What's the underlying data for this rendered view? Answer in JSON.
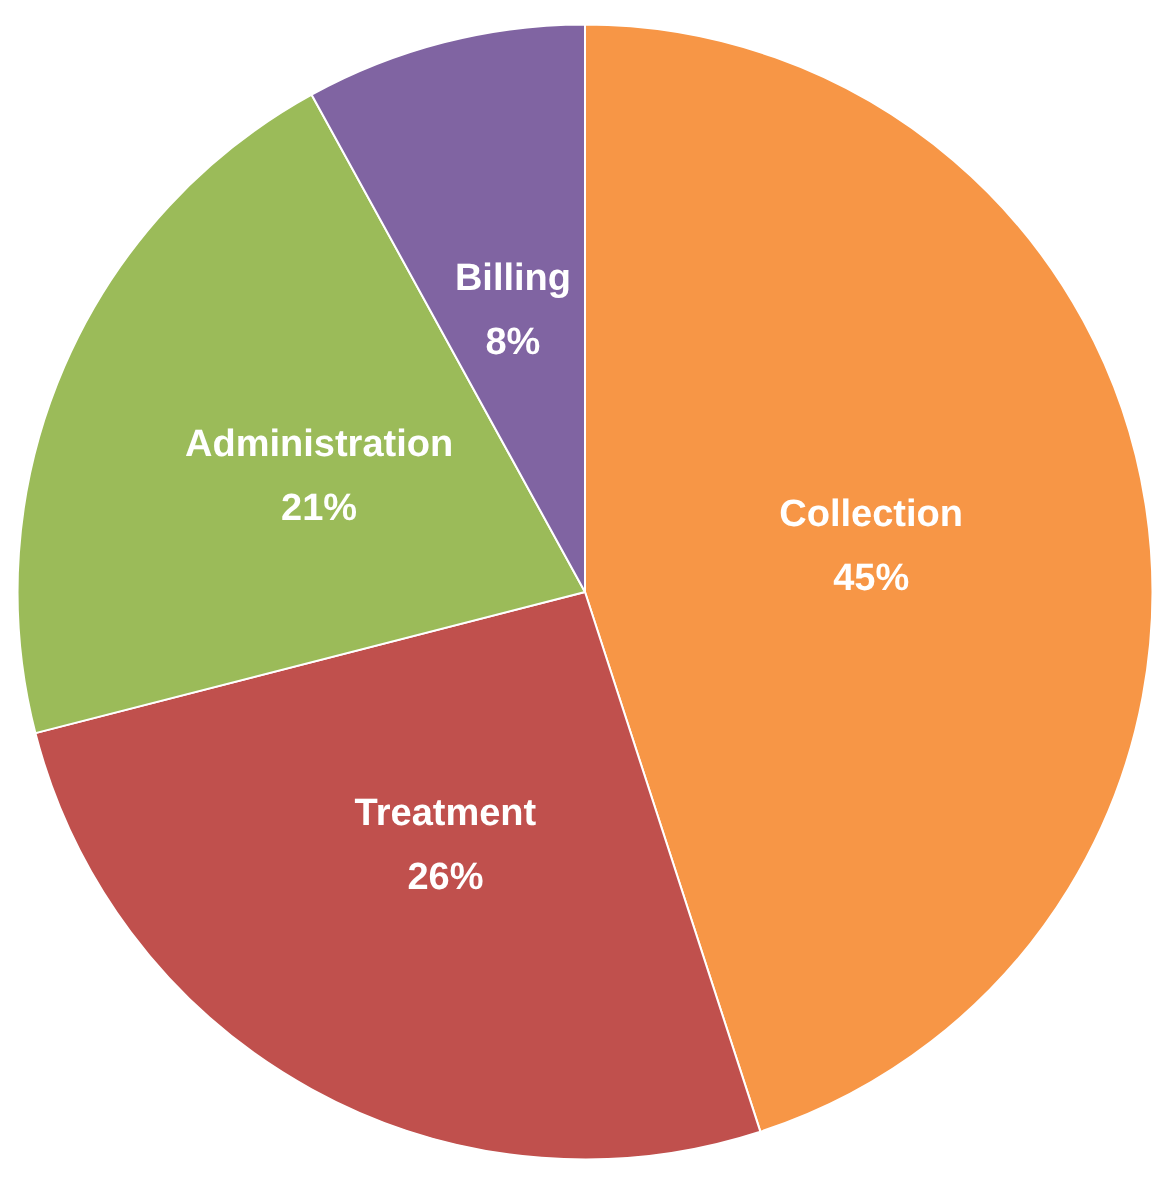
{
  "chart_data": {
    "type": "pie",
    "categories": [
      "Collection",
      "Treatment",
      "Administration",
      "Billing"
    ],
    "values": [
      45,
      26,
      21,
      8
    ],
    "value_labels": [
      "45%",
      "26%",
      "21%",
      "8%"
    ],
    "colors": [
      "#f79646",
      "#c0504d",
      "#9bbb59",
      "#8064a2"
    ],
    "legend": false
  }
}
